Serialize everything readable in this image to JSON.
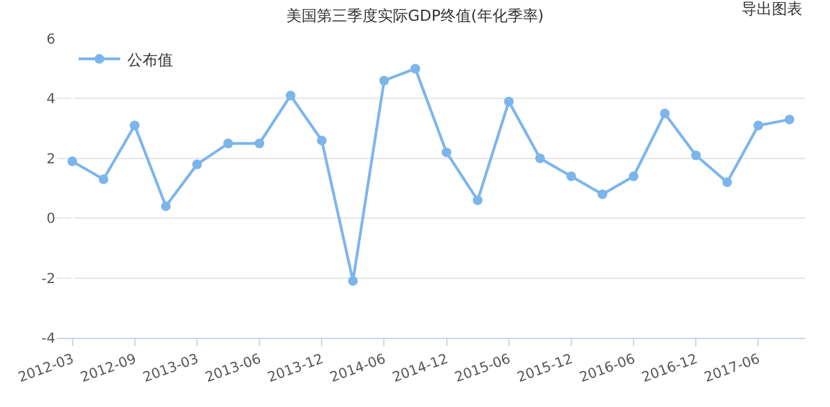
{
  "chart_data": {
    "type": "line",
    "title": "美国第三季度实际GDP终值(年化季率)",
    "categories": [
      "2012-03",
      null,
      "2012-09",
      null,
      "2013-03",
      null,
      "2013-06",
      null,
      "2013-12",
      null,
      "2014-06",
      null,
      "2014-12",
      null,
      "2015-06",
      null,
      "2015-12",
      null,
      "2016-06",
      null,
      "2016-12",
      null,
      "2017-06",
      null
    ],
    "series": [
      {
        "name": "公布值",
        "color": "#7cb5ec",
        "values": [
          1.9,
          1.3,
          3.1,
          0.4,
          1.8,
          2.5,
          2.5,
          4.1,
          2.6,
          -2.1,
          4.6,
          5.0,
          2.2,
          0.6,
          3.9,
          2.0,
          1.4,
          0.8,
          1.4,
          3.5,
          2.1,
          1.2,
          3.1,
          3.3
        ]
      }
    ],
    "ylim": [
      -4,
      6
    ],
    "yticks": [
      -4,
      -2,
      0,
      2,
      4,
      6
    ],
    "grid": "y",
    "legend": "top left",
    "marker": "circle",
    "line_style": "solid",
    "annotations": [
      "导出图表"
    ]
  }
}
